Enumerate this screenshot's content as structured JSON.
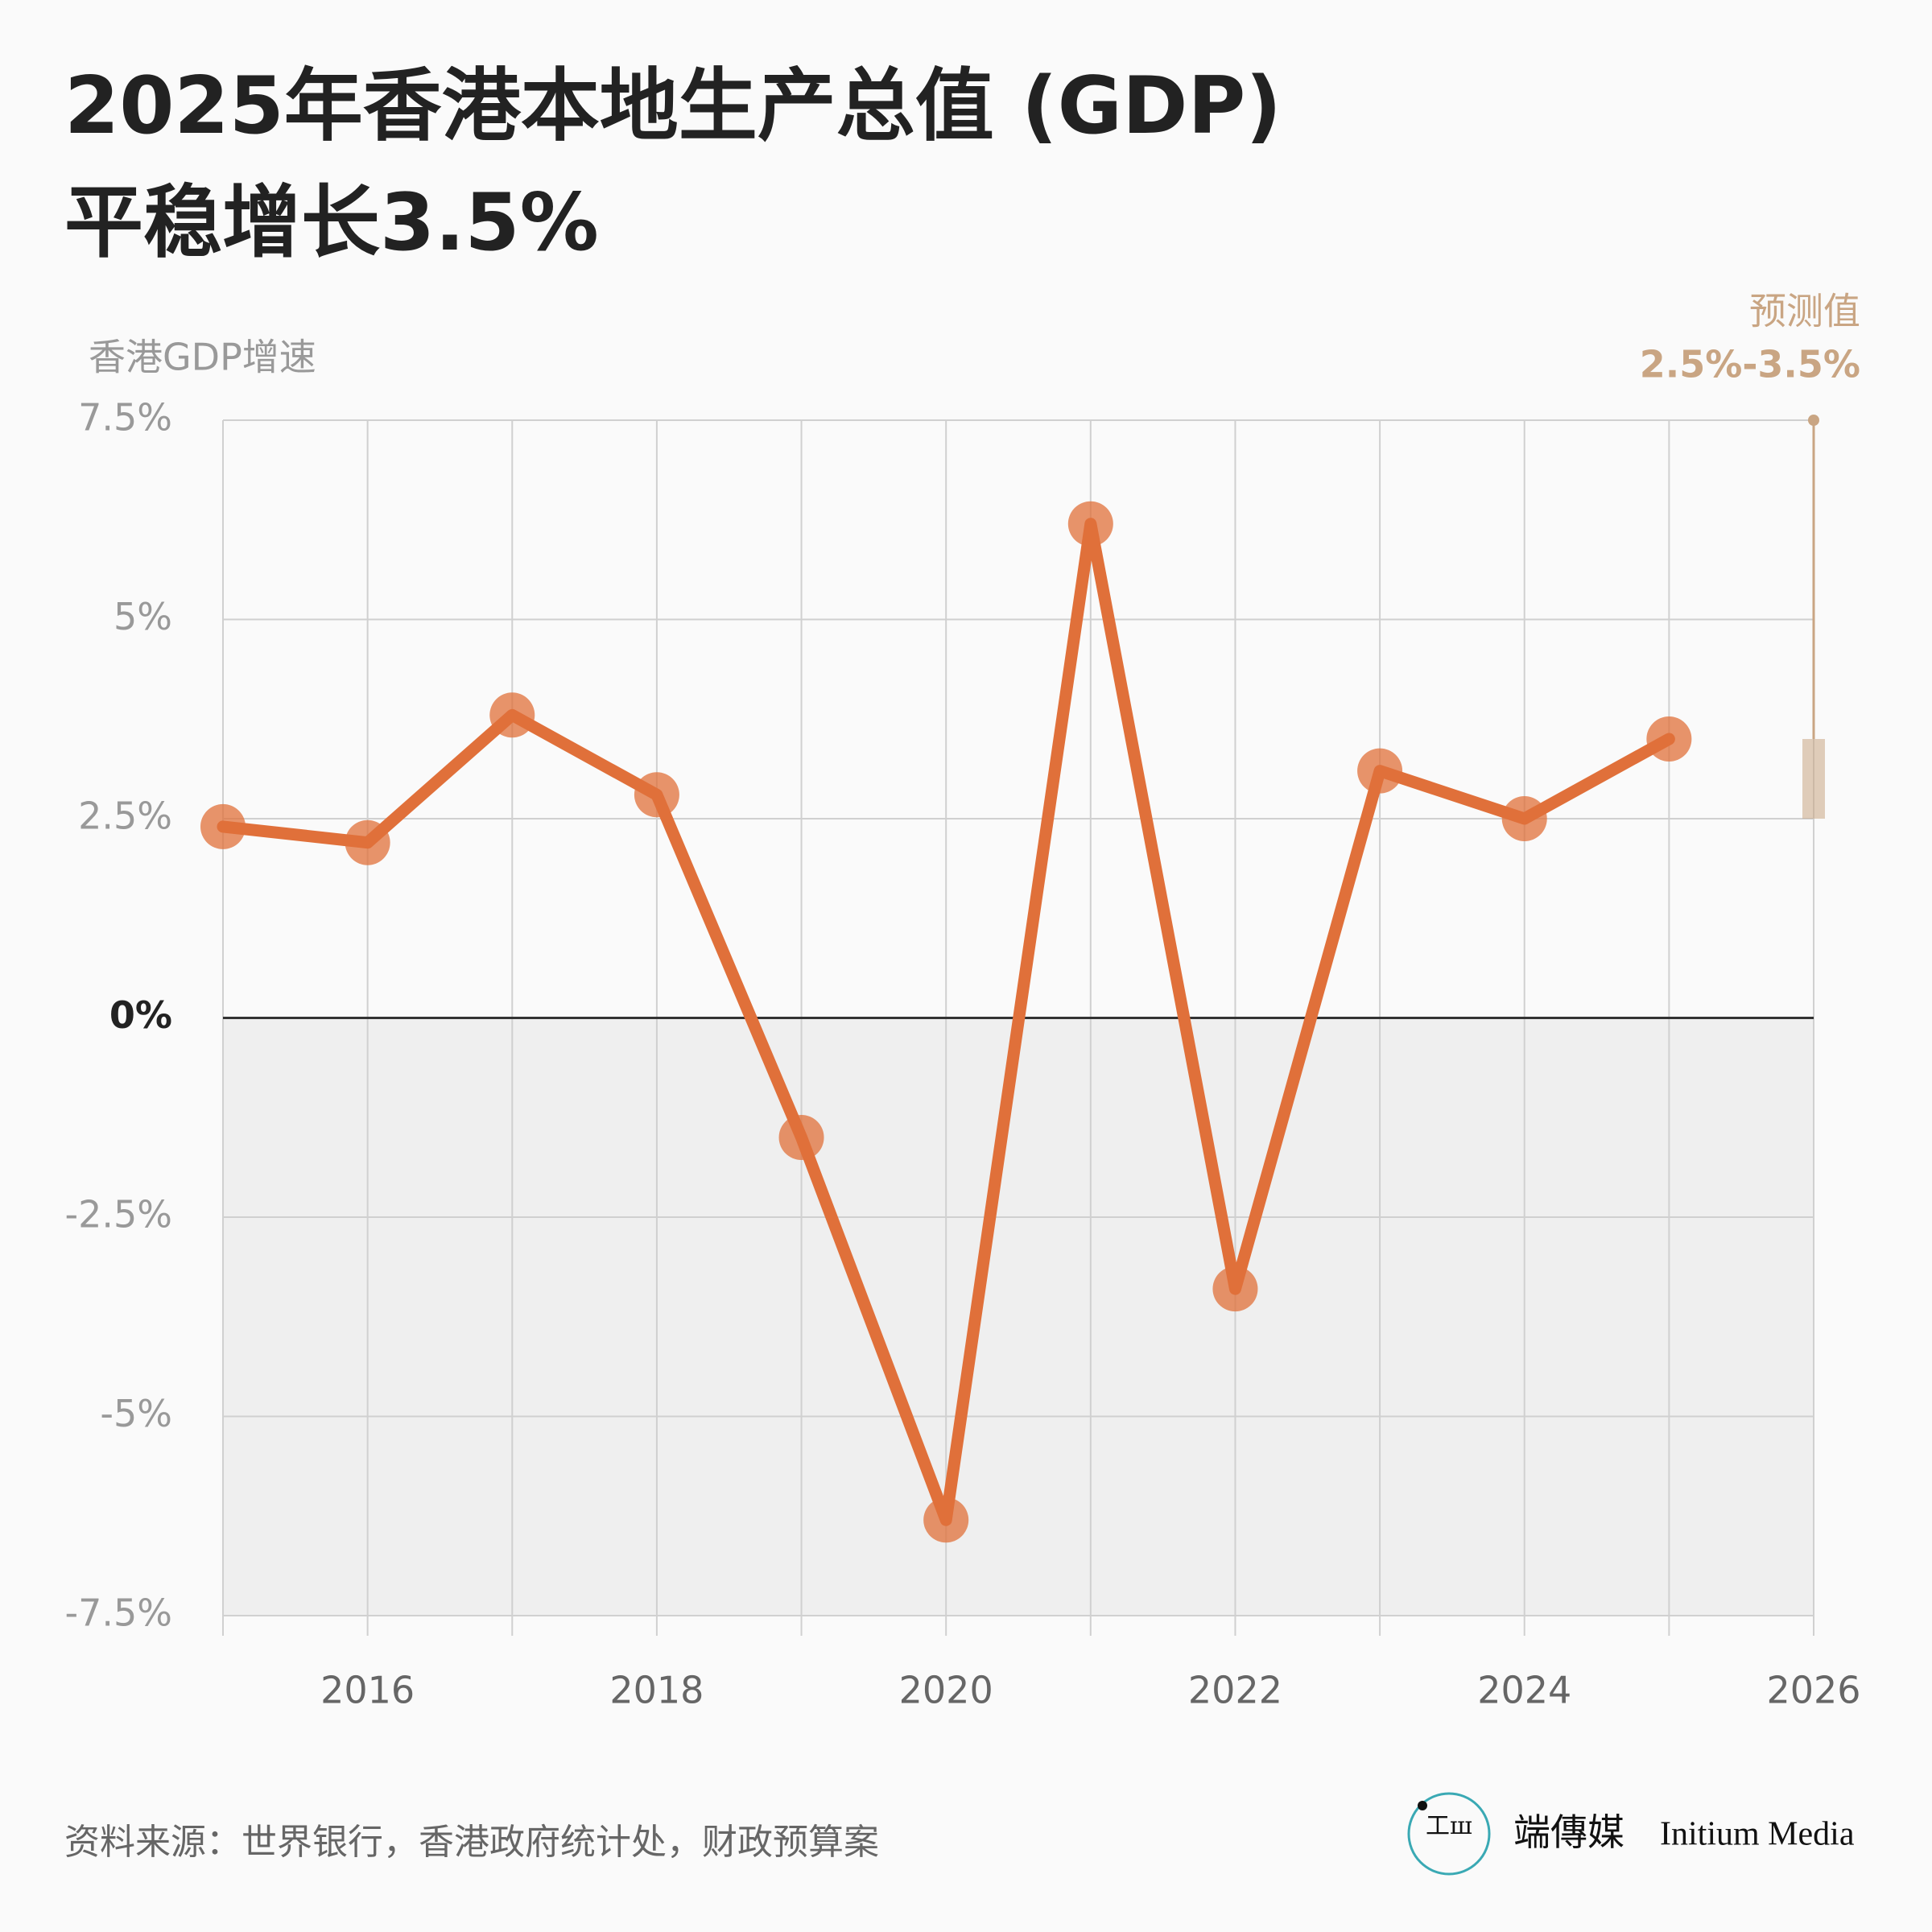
{
  "chart_data": {
    "type": "line",
    "title": [
      "2025年香港本地生产总值 (GDP)",
      "平稳增长3.5%"
    ],
    "y_label": "香港GDP增速",
    "x": [
      2015,
      2016,
      2017,
      2018,
      2019,
      2020,
      2021,
      2022,
      2023,
      2024,
      2025
    ],
    "series": [
      {
        "name": "香港GDP增速",
        "color": "#e0703a",
        "values": [
          2.4,
          2.2,
          3.8,
          2.8,
          -1.5,
          -6.3,
          6.2,
          -3.4,
          3.1,
          2.5,
          3.5
        ]
      }
    ],
    "xlim": [
      2015,
      2026
    ],
    "xticks": [
      2016,
      2018,
      2020,
      2022,
      2024,
      2026
    ],
    "x_minor_ticks": [
      2017,
      2019,
      2021,
      2023,
      2025
    ],
    "ylim": [
      -7.5,
      7.5
    ],
    "yticks": [
      {
        "value": 7.5,
        "label": "7.5%"
      },
      {
        "value": 5,
        "label": "5%"
      },
      {
        "value": 2.5,
        "label": "2.5%"
      },
      {
        "value": 0,
        "label": "0%"
      },
      {
        "value": -2.5,
        "label": "-2.5%"
      },
      {
        "value": -5,
        "label": "-5%"
      },
      {
        "value": -7.5,
        "label": "-7.5%"
      }
    ],
    "grid": true,
    "forecast": {
      "title": "预测值",
      "label": "2.5%-3.5%",
      "x": 2026,
      "low": 2.5,
      "high": 3.5,
      "color": "#c9a583"
    },
    "source": "资料来源：世界银行，香港政府统计处，财政预算案",
    "brand": {
      "cn": "端傳媒",
      "en": "Initium Media"
    }
  }
}
